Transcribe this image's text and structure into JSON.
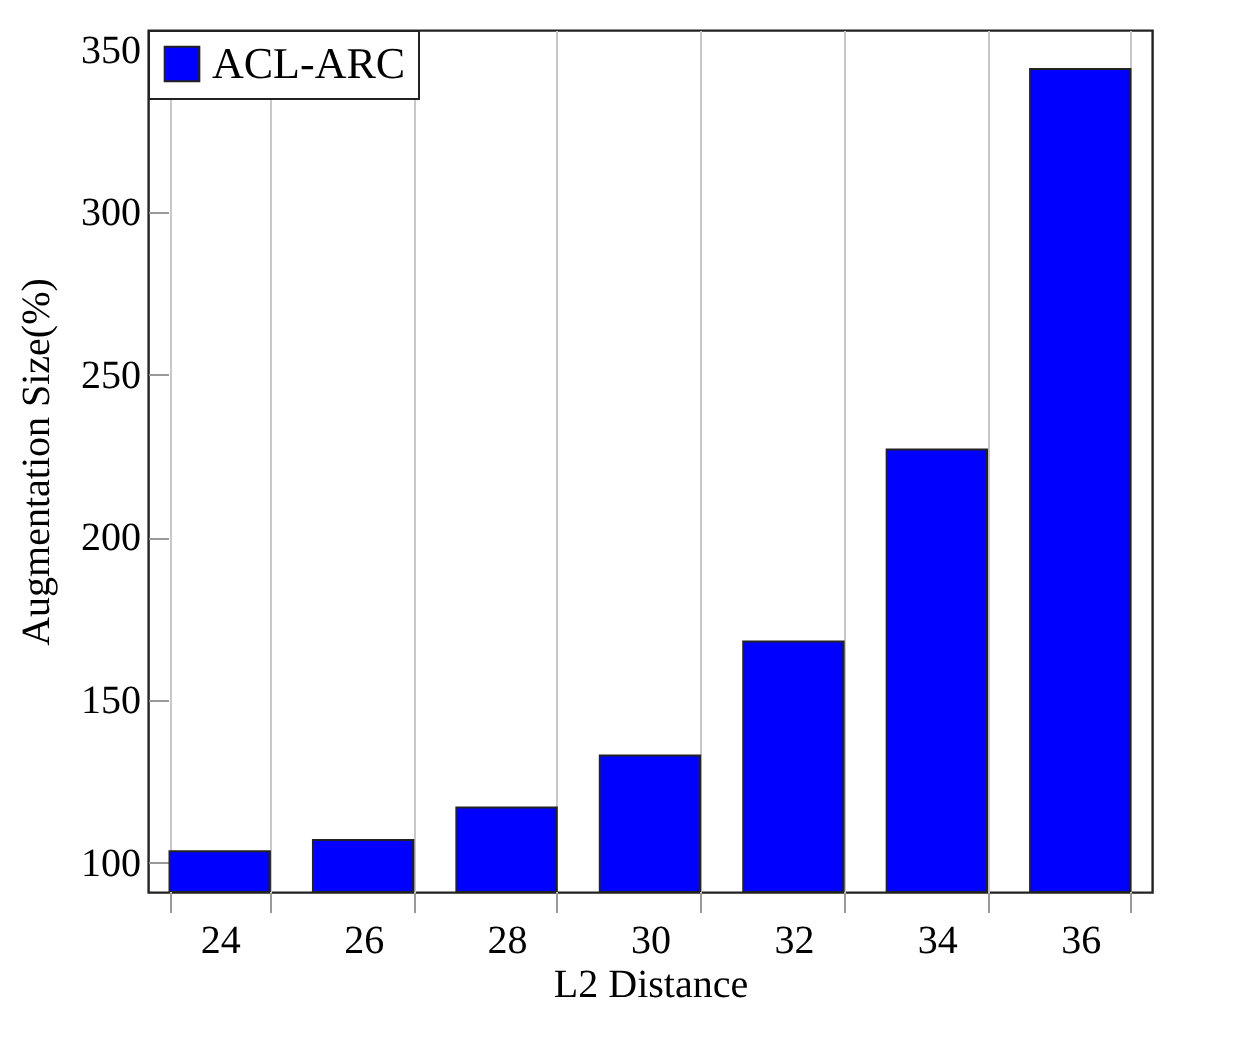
{
  "chart_data": {
    "type": "bar",
    "xlabel": "L2 Distance",
    "ylabel": "Augmentation Size(%)",
    "categories": [
      "24",
      "26",
      "28",
      "30",
      "32",
      "34",
      "36"
    ],
    "series": [
      {
        "name": "ACL-ARC",
        "color": "#0000ff",
        "values": [
          103.5,
          107,
          117,
          133,
          168,
          227,
          344
        ]
      }
    ],
    "ylim": [
      91,
      356
    ],
    "yticks": [
      100,
      150,
      200,
      250,
      300,
      350
    ],
    "grid": "x",
    "legend": "top left"
  }
}
